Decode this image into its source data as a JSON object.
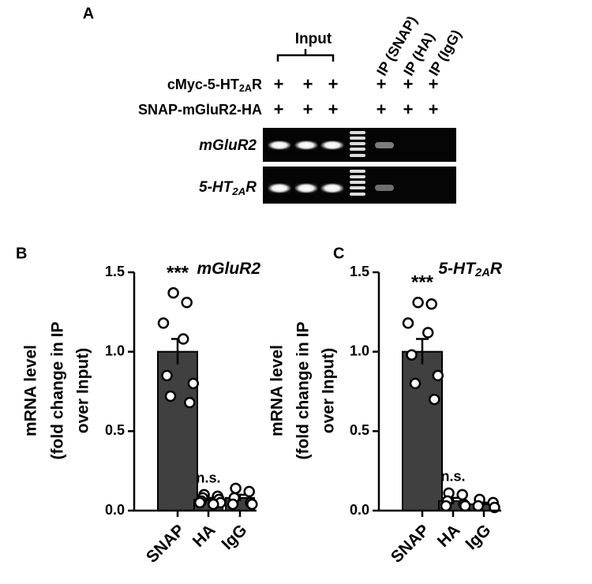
{
  "panel_a": {
    "label": "A",
    "input_label": "Input",
    "ip_labels": [
      "IP (SNAP)",
      "IP (HA)",
      "IP (IgG)"
    ],
    "rows": [
      {
        "label": [
          "cMyc-5-HT",
          "2A",
          "R"
        ],
        "signs": [
          "+",
          "+",
          "+",
          "+",
          "+",
          "+"
        ]
      },
      {
        "label": [
          "SNAP-mGluR2-HA"
        ],
        "signs": [
          "+",
          "+",
          "+",
          "+",
          "+",
          "+"
        ]
      }
    ],
    "bands": [
      [
        "mGluR2"
      ],
      [
        "5-HT",
        "2A",
        "R"
      ]
    ]
  },
  "chart_data": [
    {
      "type": "bar",
      "panel": "B",
      "title": [
        "mGluR2"
      ],
      "ylabel": [
        "mRNA level",
        "(fold change in IP",
        "over Input)"
      ],
      "categories": [
        "SNAP",
        "HA",
        "IgG"
      ],
      "values": [
        1.0,
        0.07,
        0.08
      ],
      "errors": [
        0.08,
        0.01,
        0.02
      ],
      "points": [
        [
          1.37,
          1.31,
          1.18,
          1.08,
          0.85,
          0.8,
          0.72,
          0.68
        ],
        [
          0.1,
          0.09,
          0.08,
          0.07,
          0.06,
          0.05,
          0.05,
          0.04
        ],
        [
          0.14,
          0.12,
          0.08,
          0.05,
          0.04,
          0.04
        ]
      ],
      "annotations": [
        "***",
        "n.s.",
        null
      ],
      "color": "#404040",
      "ylim": [
        0,
        1.5
      ],
      "yticks": [
        {
          "value": 0,
          "label": "0.0"
        },
        {
          "value": 0.5,
          "label": "0.5"
        },
        {
          "value": 1,
          "label": "1.0"
        },
        {
          "value": 1.5,
          "label": "1.5"
        }
      ]
    },
    {
      "type": "bar",
      "panel": "C",
      "title": [
        "5-HT",
        "2A",
        "R"
      ],
      "ylabel": [
        "mRNA level",
        "(fold change in IP",
        "over Input)"
      ],
      "categories": [
        "SNAP",
        "HA",
        "IgG"
      ],
      "values": [
        1.0,
        0.06,
        0.04
      ],
      "errors": [
        0.08,
        0.02,
        0.01
      ],
      "points": [
        [
          1.31,
          1.3,
          1.18,
          1.12,
          0.98,
          0.85,
          0.8,
          0.7
        ],
        [
          0.11,
          0.1,
          0.06,
          0.04,
          0.03,
          0.03
        ],
        [
          0.07,
          0.05,
          0.03,
          0.02
        ]
      ],
      "annotations": [
        "***",
        "n.s.",
        null
      ],
      "color": "#404040",
      "ylim": [
        0,
        1.5
      ],
      "yticks": [
        {
          "value": 0,
          "label": "0.0"
        },
        {
          "value": 0.5,
          "label": "0.5"
        },
        {
          "value": 1,
          "label": "1.0"
        },
        {
          "value": 1.5,
          "label": "1.5"
        }
      ]
    }
  ]
}
